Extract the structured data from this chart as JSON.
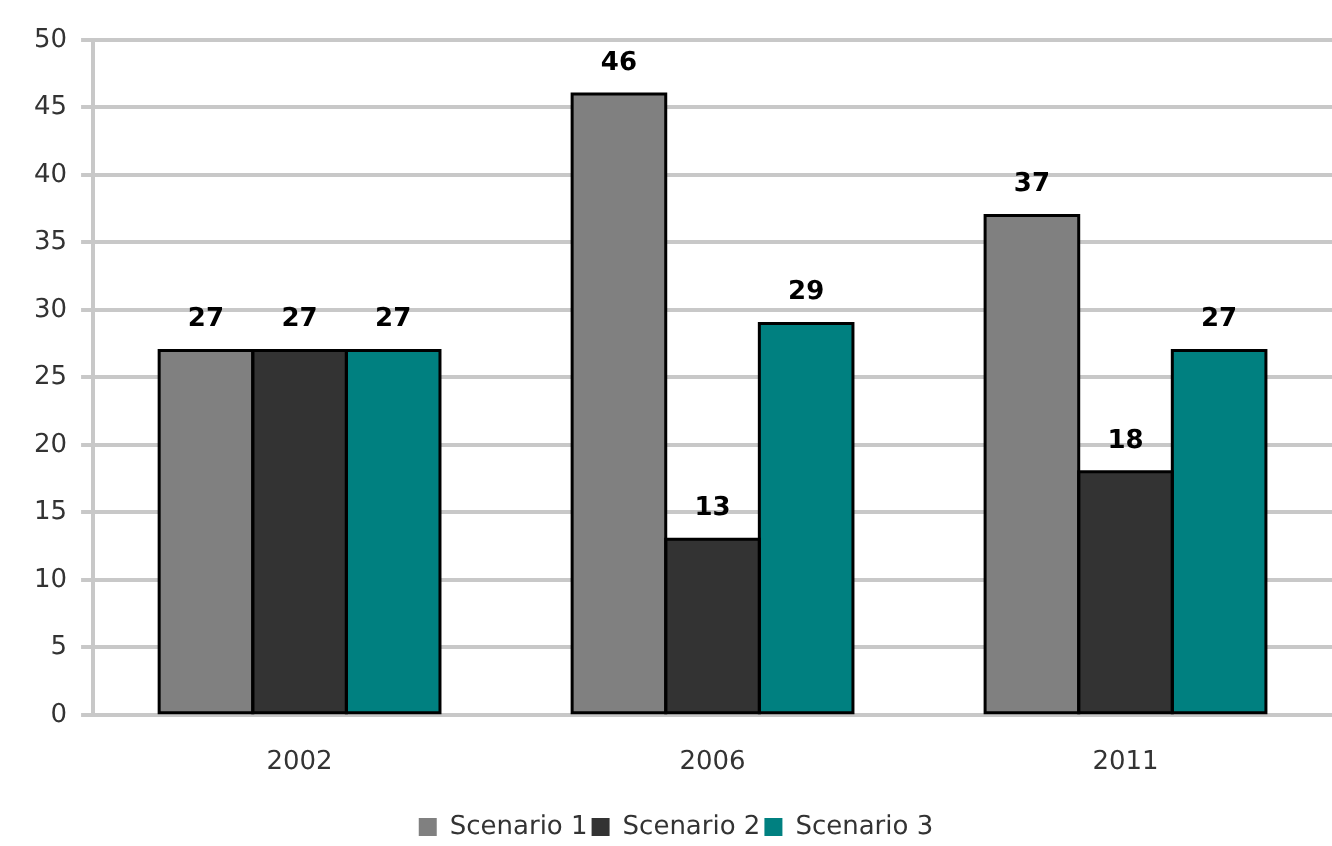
{
  "chart_data": {
    "type": "bar",
    "categories": [
      "2002",
      "2006",
      "2011"
    ],
    "series": [
      {
        "name": "Scenario 1",
        "color": "#808080",
        "values": [
          27,
          46,
          37
        ]
      },
      {
        "name": "Scenario 2",
        "color": "#333333",
        "values": [
          27,
          13,
          18
        ]
      },
      {
        "name": "Scenario 3",
        "color": "#008080",
        "values": [
          27,
          29,
          27
        ]
      }
    ],
    "ylim": [
      0,
      50
    ],
    "yticks": [
      0,
      5,
      10,
      15,
      20,
      25,
      30,
      35,
      40,
      45,
      50
    ],
    "grid": "y",
    "legend": "bottom",
    "data_labels": true
  }
}
